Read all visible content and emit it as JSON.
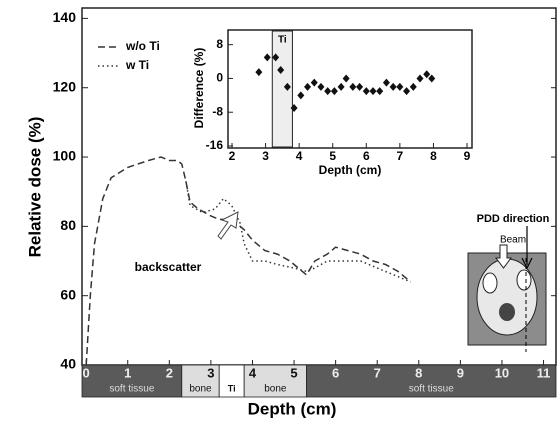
{
  "chart_data": [
    {
      "type": "line",
      "x_label": "Depth (cm)",
      "y_label": "Relative dose (%)",
      "xlim": [
        -0.1,
        11.3
      ],
      "ylim": [
        40,
        143
      ],
      "xticks": [
        0,
        1,
        2,
        3,
        4,
        5,
        6,
        7,
        8,
        9,
        10,
        11
      ],
      "yticks": [
        40,
        60,
        80,
        100,
        120,
        140
      ],
      "legend": "top-left",
      "series": [
        {
          "name": "w/o Ti",
          "color": "#333333",
          "dash": "dashed",
          "x": [
            0,
            0.1,
            0.2,
            0.4,
            0.6,
            1,
            1.5,
            1.8,
            2,
            2.2,
            2.3,
            2.4,
            2.5,
            2.7,
            3,
            3.2,
            3.5,
            3.8,
            4,
            4.3,
            4.6,
            4.9,
            5.3,
            5.5,
            5.8,
            6,
            6.3,
            6.6,
            6.9,
            7.2,
            7.5,
            7.8
          ],
          "values": [
            40,
            60,
            75,
            88,
            94,
            97,
            99,
            100,
            99,
            99,
            98,
            93,
            87,
            85,
            83,
            82,
            82,
            79,
            76,
            73,
            72,
            70,
            66,
            70,
            72,
            74,
            73,
            72,
            70,
            69,
            67,
            64
          ]
        },
        {
          "name": "w Ti",
          "color": "#333333",
          "dash": "dotted",
          "x": [
            2.4,
            2.5,
            2.8,
            3.1,
            3.3,
            3.5,
            3.7,
            3.8,
            4,
            4.3,
            4.6,
            5,
            5.3,
            5.5,
            5.8,
            6.2,
            6.6,
            7,
            7.4,
            7.8
          ],
          "values": [
            93,
            86,
            84,
            85,
            88,
            86,
            81,
            75,
            70,
            70,
            69,
            68,
            67,
            68,
            70,
            70,
            70,
            68,
            66,
            64
          ]
        }
      ],
      "tissue_bands": [
        {
          "label": "soft tissue",
          "start": -0.1,
          "end": 2.3,
          "color": "#5a5a5a"
        },
        {
          "label": "bone",
          "start": 2.3,
          "end": 3.2,
          "color": "#dddddd"
        },
        {
          "label": "Ti",
          "start": 3.2,
          "end": 3.8,
          "color": "#ffffff"
        },
        {
          "label": "bone",
          "start": 3.8,
          "end": 5.3,
          "color": "#dddddd"
        },
        {
          "label": "soft tissue",
          "start": 5.3,
          "end": 11.3,
          "color": "#5a5a5a"
        }
      ],
      "annotations": {
        "backscatter": "backscatter",
        "pdd_direction": "PDD direction",
        "beam": "Beam"
      }
    },
    {
      "type": "scatter",
      "x_label": "Depth (cm)",
      "y_label": "Difference (%)",
      "xlim": [
        2,
        9
      ],
      "ylim": [
        -16,
        11
      ],
      "xticks": [
        2,
        3,
        4,
        5,
        6,
        7,
        8,
        9
      ],
      "yticks": [
        -16,
        -8,
        0,
        8
      ],
      "ti_region": {
        "label": "Ti",
        "range": [
          3.2,
          3.8
        ]
      },
      "color": "#111111",
      "x": [
        2.8,
        3.05,
        3.3,
        3.45,
        3.65,
        3.85,
        4.05,
        4.25,
        4.45,
        4.65,
        4.85,
        5.05,
        5.25,
        5.4,
        5.6,
        5.8,
        6.0,
        6.2,
        6.4,
        6.6,
        6.8,
        7.0,
        7.2,
        7.4,
        7.6,
        7.8,
        7.95
      ],
      "values": [
        1.5,
        5,
        5,
        2,
        -2,
        -7,
        -4,
        -2,
        -1,
        -2,
        -3,
        -3,
        -2,
        0,
        -2,
        -2,
        -3,
        -3,
        -3,
        -1,
        -2,
        -2,
        -3,
        -2,
        0,
        1,
        0
      ]
    }
  ]
}
